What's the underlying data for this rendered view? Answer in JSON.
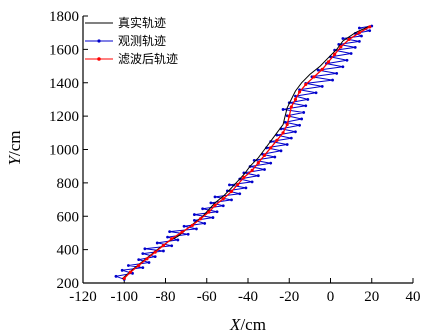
{
  "chart_data": {
    "type": "line",
    "title": "",
    "xlabel": "X/cm",
    "ylabel": "Y/cm",
    "xlim": [
      -120,
      40
    ],
    "ylim": [
      200,
      1800
    ],
    "x_ticks": [
      "-120",
      "-100",
      "-80",
      "-60",
      "-40",
      "-20",
      "0",
      "20",
      "40"
    ],
    "y_ticks": [
      "200",
      "400",
      "600",
      "800",
      "1000",
      "1200",
      "1400",
      "1600",
      "1800"
    ],
    "legend_position": "top-left",
    "grid": false,
    "series": [
      {
        "name": "真实轨迹",
        "color": "#000000",
        "style": "solid-line",
        "points": [
          [
            -101,
            225
          ],
          [
            -96,
            280
          ],
          [
            -91,
            330
          ],
          [
            -87,
            370
          ],
          [
            -83,
            410
          ],
          [
            -79,
            445
          ],
          [
            -74,
            480
          ],
          [
            -70,
            520
          ],
          [
            -66,
            560
          ],
          [
            -62,
            600
          ],
          [
            -59,
            640
          ],
          [
            -56,
            680
          ],
          [
            -52,
            720
          ],
          [
            -48,
            770
          ],
          [
            -45,
            810
          ],
          [
            -42,
            850
          ],
          [
            -39,
            900
          ],
          [
            -35,
            950
          ],
          [
            -32,
            1000
          ],
          [
            -29,
            1050
          ],
          [
            -26,
            1100
          ],
          [
            -23,
            1150
          ],
          [
            -22,
            1200
          ],
          [
            -21,
            1250
          ],
          [
            -19,
            1300
          ],
          [
            -17,
            1350
          ],
          [
            -14,
            1400
          ],
          [
            -10,
            1450
          ],
          [
            -5,
            1500
          ],
          [
            -1,
            1550
          ],
          [
            3,
            1600
          ],
          [
            6,
            1650
          ],
          [
            12,
            1700
          ],
          [
            19,
            1740
          ]
        ]
      },
      {
        "name": "观测轨迹",
        "color": "#0000cc",
        "style": "line-with-dots",
        "points": [
          [
            -100,
            222
          ],
          [
            -104,
            240
          ],
          [
            -96,
            258
          ],
          [
            -101,
            276
          ],
          [
            -91,
            292
          ],
          [
            -98,
            305
          ],
          [
            -88,
            323
          ],
          [
            -93,
            340
          ],
          [
            -85,
            358
          ],
          [
            -91,
            376
          ],
          [
            -81,
            392
          ],
          [
            -90,
            405
          ],
          [
            -77,
            423
          ],
          [
            -84,
            440
          ],
          [
            -74,
            458
          ],
          [
            -79,
            475
          ],
          [
            -69,
            492
          ],
          [
            -78,
            508
          ],
          [
            -65,
            524
          ],
          [
            -71,
            540
          ],
          [
            -61,
            557
          ],
          [
            -66,
            575
          ],
          [
            -57,
            592
          ],
          [
            -66,
            610
          ],
          [
            -55,
            627
          ],
          [
            -62,
            645
          ],
          [
            -52,
            663
          ],
          [
            -58,
            680
          ],
          [
            -48,
            698
          ],
          [
            -56,
            716
          ],
          [
            -44,
            735
          ],
          [
            -50,
            752
          ],
          [
            -41,
            770
          ],
          [
            -49,
            788
          ],
          [
            -38,
            806
          ],
          [
            -44,
            823
          ],
          [
            -35,
            843
          ],
          [
            -42,
            860
          ],
          [
            -32,
            880
          ],
          [
            -39,
            898
          ],
          [
            -29,
            918
          ],
          [
            -37,
            935
          ],
          [
            -27,
            955
          ],
          [
            -33,
            972
          ],
          [
            -24,
            992
          ],
          [
            -31,
            1010
          ],
          [
            -21,
            1030
          ],
          [
            -29,
            1048
          ],
          [
            -19,
            1068
          ],
          [
            -26,
            1086
          ],
          [
            -17,
            1106
          ],
          [
            -24,
            1124
          ],
          [
            -15,
            1145
          ],
          [
            -22,
            1163
          ],
          [
            -14,
            1183
          ],
          [
            -21,
            1202
          ],
          [
            -13,
            1222
          ],
          [
            -23,
            1240
          ],
          [
            -12,
            1262
          ],
          [
            -20,
            1280
          ],
          [
            -11,
            1300
          ],
          [
            -17,
            1320
          ],
          [
            -7,
            1340
          ],
          [
            -15,
            1358
          ],
          [
            -4,
            1378
          ],
          [
            -12,
            1396
          ],
          [
            1,
            1416
          ],
          [
            -9,
            1436
          ],
          [
            3,
            1456
          ],
          [
            -6,
            1476
          ],
          [
            6,
            1496
          ],
          [
            -2,
            1515
          ],
          [
            8,
            1535
          ],
          [
            0,
            1555
          ],
          [
            10,
            1575
          ],
          [
            2,
            1595
          ],
          [
            12,
            1612
          ],
          [
            4,
            1630
          ],
          [
            14,
            1648
          ],
          [
            6,
            1665
          ],
          [
            15,
            1680
          ],
          [
            12,
            1696
          ],
          [
            19,
            1712
          ],
          [
            14,
            1728
          ],
          [
            20,
            1740
          ]
        ]
      },
      {
        "name": "滤波后轨迹",
        "color": "#ff0000",
        "style": "line-with-markers",
        "points": [
          [
            -100,
            228
          ],
          [
            -97,
            265
          ],
          [
            -93,
            305
          ],
          [
            -89,
            345
          ],
          [
            -85,
            385
          ],
          [
            -81,
            425
          ],
          [
            -77,
            465
          ],
          [
            -72,
            505
          ],
          [
            -67,
            545
          ],
          [
            -63,
            585
          ],
          [
            -59,
            625
          ],
          [
            -56,
            665
          ],
          [
            -52,
            705
          ],
          [
            -48,
            748
          ],
          [
            -45,
            790
          ],
          [
            -42,
            832
          ],
          [
            -38,
            875
          ],
          [
            -35,
            920
          ],
          [
            -32,
            965
          ],
          [
            -29,
            1010
          ],
          [
            -26,
            1055
          ],
          [
            -23,
            1100
          ],
          [
            -21,
            1150
          ],
          [
            -20,
            1200
          ],
          [
            -19,
            1255
          ],
          [
            -17,
            1300
          ],
          [
            -15,
            1345
          ],
          [
            -12,
            1390
          ],
          [
            -8,
            1435
          ],
          [
            -4,
            1480
          ],
          [
            -1,
            1525
          ],
          [
            2,
            1570
          ],
          [
            5,
            1615
          ],
          [
            9,
            1660
          ],
          [
            14,
            1700
          ],
          [
            19,
            1735
          ]
        ]
      }
    ]
  }
}
